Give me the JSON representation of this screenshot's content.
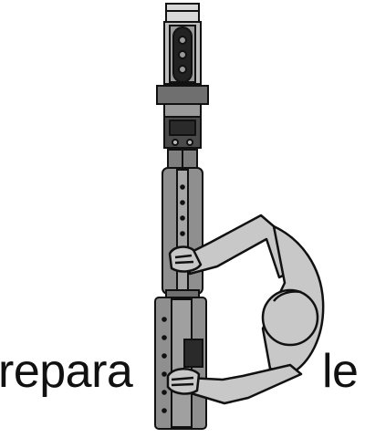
{
  "logo": {
    "text_left": "repara",
    "text_right": "le",
    "icon_name": "person-holding-vertical-tool-illustration",
    "colors": {
      "outline": "#111111",
      "body_fill": "#c8c8c8",
      "tool_fill": "#8f8f8f",
      "dark_fill": "#2a2a2a",
      "text": "#111111"
    }
  }
}
